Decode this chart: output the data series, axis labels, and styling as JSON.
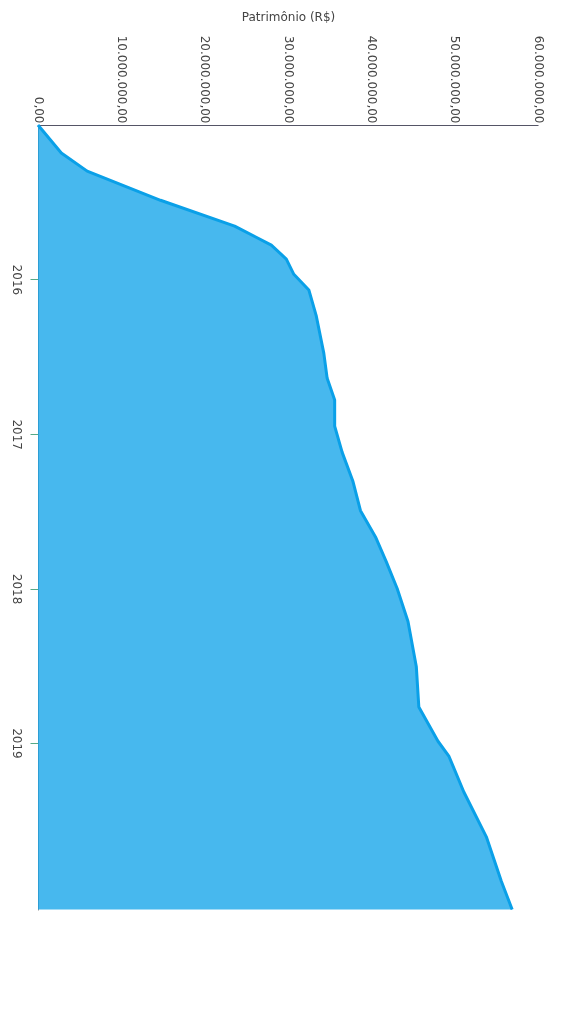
{
  "chart_data": {
    "type": "area",
    "orientation": "horizontal",
    "xlabel": "Patrimônio (R$)",
    "color": "#0aa0e8",
    "x": [
      "2015-01-01",
      "2015-03-08",
      "2015-04-20",
      "2015-06-28",
      "2015-08-28",
      "2015-10-12",
      "2015-11-14",
      "2015-12-20",
      "2016-01-26",
      "2016-03-28",
      "2016-06-24",
      "2016-08-22",
      "2016-10-12",
      "2016-12-13",
      "2017-02-13",
      "2017-04-23",
      "2017-07-01",
      "2017-09-01",
      "2017-10-30",
      "2018-01-01",
      "2018-03-20",
      "2018-07-05",
      "2018-10-08",
      "2018-12-28",
      "2019-02-01",
      "2019-04-27",
      "2019-08-11",
      "2019-11-24",
      "2020-01-30"
    ],
    "values": [
      0,
      2800000,
      5900000,
      14700000,
      23600000,
      28000000,
      29800000,
      30700000,
      32500000,
      33400000,
      34300000,
      34700000,
      35600000,
      35600000,
      36500000,
      37800000,
      38700000,
      40500000,
      41800000,
      43100000,
      44400000,
      45400000,
      45700000,
      48000000,
      49300000,
      51100000,
      53800000,
      55600000,
      56900000
    ],
    "xlim": [
      0,
      60000000
    ],
    "xticks": [
      {
        "value": 0,
        "label": "0,00"
      },
      {
        "value": 10000000,
        "label": "10.000.000,00"
      },
      {
        "value": 20000000,
        "label": "20.000.000,00"
      },
      {
        "value": 30000000,
        "label": "30.000.000,00"
      },
      {
        "value": 40000000,
        "label": "40.000.000,00"
      },
      {
        "value": 50000000,
        "label": "50.000.000,00"
      },
      {
        "value": 60000000,
        "label": "60.000.000,00"
      }
    ],
    "ylim": [
      "2020-01-31",
      "2015-01-01"
    ],
    "yticks": [
      {
        "value": "2016-01-01",
        "label": "2016"
      },
      {
        "value": "2017-01-01",
        "label": "2017"
      },
      {
        "value": "2018-01-01",
        "label": "2018"
      },
      {
        "value": "2019-01-01",
        "label": "2019"
      }
    ]
  }
}
